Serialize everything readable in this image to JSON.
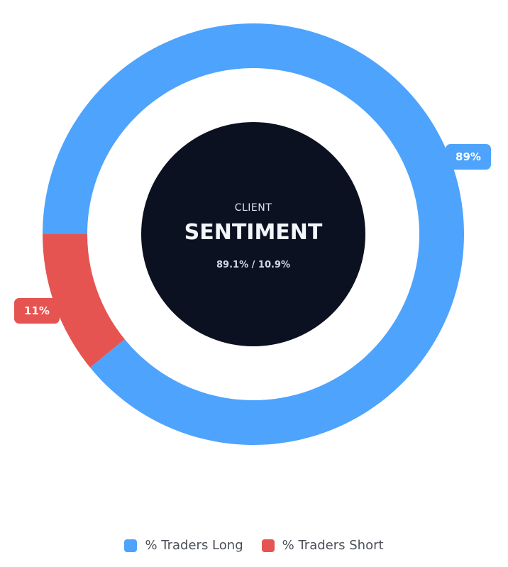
{
  "chart_data": {
    "type": "pie",
    "categories": [
      "% Traders Long",
      "% Traders Short"
    ],
    "values": [
      89.1,
      10.9
    ],
    "slice_labels": [
      "89%",
      "11%"
    ],
    "colors": [
      "#4ea3fd",
      "#e55451"
    ],
    "legend_position": "bottom-center",
    "center": {
      "small_label": "CLIENT",
      "big_label": "SENTIMENT",
      "ratio_text": "89.1% / 10.9%",
      "background_color": "#0b1120"
    }
  },
  "legend": {
    "items": [
      {
        "label": "% Traders Long",
        "color": "#4ea3fd"
      },
      {
        "label": "% Traders Short",
        "color": "#e55451"
      }
    ]
  }
}
